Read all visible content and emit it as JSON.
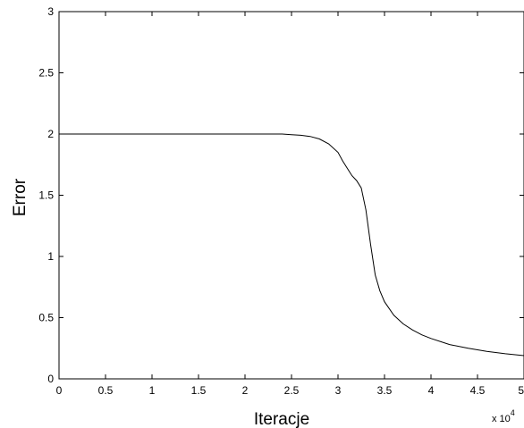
{
  "chart_data": {
    "type": "line",
    "xlabel": "Iteracje",
    "ylabel": "Error",
    "x_multiplier_label": "x 10",
    "x_multiplier_exponent": "4",
    "xlim": [
      0,
      5
    ],
    "ylim": [
      0,
      3
    ],
    "xticks": [
      "0",
      "0.5",
      "1",
      "1.5",
      "2",
      "2.5",
      "3",
      "3.5",
      "4",
      "4.5",
      "5"
    ],
    "yticks": [
      "0",
      "0.5",
      "1",
      "1.5",
      "2",
      "2.5",
      "3"
    ],
    "grid": false,
    "series": [
      {
        "color": "#000000",
        "x": [
          0,
          0.5,
          1.0,
          1.5,
          2.0,
          2.4,
          2.5,
          2.6,
          2.7,
          2.8,
          2.9,
          3.0,
          3.05,
          3.1,
          3.15,
          3.2,
          3.25,
          3.3,
          3.35,
          3.4,
          3.45,
          3.5,
          3.6,
          3.7,
          3.8,
          3.9,
          4.0,
          4.2,
          4.4,
          4.6,
          4.8,
          5.0
        ],
        "y": [
          2.0,
          2.0,
          2.0,
          2.0,
          2.0,
          2.0,
          1.995,
          1.99,
          1.98,
          1.96,
          1.92,
          1.85,
          1.78,
          1.72,
          1.66,
          1.62,
          1.56,
          1.38,
          1.1,
          0.85,
          0.72,
          0.63,
          0.52,
          0.45,
          0.4,
          0.36,
          0.33,
          0.28,
          0.25,
          0.225,
          0.205,
          0.19
        ]
      }
    ]
  }
}
